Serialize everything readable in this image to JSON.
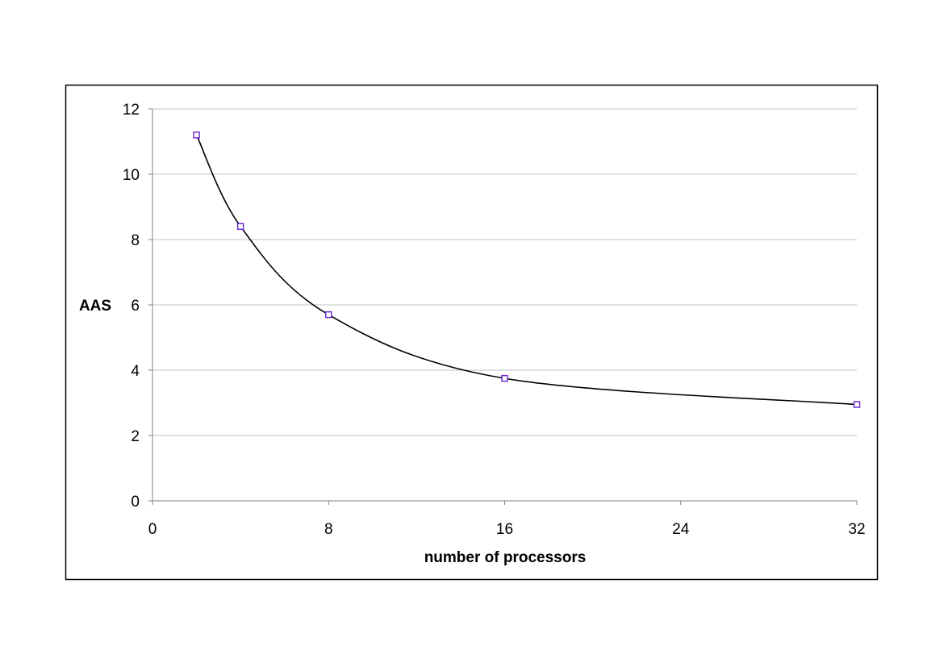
{
  "chart_data": {
    "type": "scatter",
    "title": "",
    "xlabel": "number of processors",
    "ylabel": "AAS",
    "xlim": [
      0,
      32
    ],
    "ylim": [
      0,
      12
    ],
    "x_ticks": [
      0,
      8,
      16,
      24,
      32
    ],
    "y_ticks": [
      0,
      2,
      4,
      6,
      8,
      10,
      12
    ],
    "grid": {
      "horizontal": true,
      "vertical": false
    },
    "legend": "none",
    "smooth_line": true,
    "series": [
      {
        "x": [
          2,
          4,
          8,
          16,
          32
        ],
        "y": [
          11.2,
          8.4,
          5.7,
          3.75,
          2.95
        ],
        "marker": "square",
        "marker_color": "#6a1fd0",
        "line_color": "#000000"
      }
    ]
  }
}
